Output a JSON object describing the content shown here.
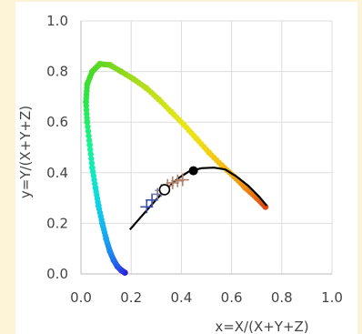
{
  "chart_data": {
    "type": "scatter",
    "title": "",
    "xlabel": "x=X/(X+Y+Z)",
    "ylabel": "y=Y/(X+Y+Z)",
    "xlim": [
      0.0,
      1.0
    ],
    "ylim": [
      0.0,
      1.0
    ],
    "x_ticks": [
      "0.0",
      "0.2",
      "0.4",
      "0.6",
      "0.8",
      "1.0"
    ],
    "y_ticks": [
      "0.0",
      "0.2",
      "0.4",
      "0.6",
      "0.8",
      "1.0"
    ],
    "grid": true,
    "series": [
      {
        "kind": "spectral-locus",
        "points": [
          {
            "x": 0.175,
            "y": 0.005,
            "color": "#2a1fd6"
          },
          {
            "x": 0.16,
            "y": 0.015,
            "color": "#2b34e0"
          },
          {
            "x": 0.145,
            "y": 0.03,
            "color": "#2450e6"
          },
          {
            "x": 0.13,
            "y": 0.055,
            "color": "#1f6ded"
          },
          {
            "x": 0.115,
            "y": 0.09,
            "color": "#1d88f0"
          },
          {
            "x": 0.1,
            "y": 0.14,
            "color": "#1aa2f2"
          },
          {
            "x": 0.085,
            "y": 0.2,
            "color": "#12b9ee"
          },
          {
            "x": 0.07,
            "y": 0.27,
            "color": "#0fd0e6"
          },
          {
            "x": 0.058,
            "y": 0.34,
            "color": "#10e0d4"
          },
          {
            "x": 0.045,
            "y": 0.42,
            "color": "#14ebb8"
          },
          {
            "x": 0.035,
            "y": 0.51,
            "color": "#1bf094"
          },
          {
            "x": 0.025,
            "y": 0.6,
            "color": "#22ee6c"
          },
          {
            "x": 0.02,
            "y": 0.68,
            "color": "#2ae74b"
          },
          {
            "x": 0.025,
            "y": 0.75,
            "color": "#38e035"
          },
          {
            "x": 0.045,
            "y": 0.8,
            "color": "#4ada28"
          },
          {
            "x": 0.075,
            "y": 0.83,
            "color": "#5cd722"
          },
          {
            "x": 0.115,
            "y": 0.826,
            "color": "#72d61f"
          },
          {
            "x": 0.16,
            "y": 0.8,
            "color": "#8ad81e"
          },
          {
            "x": 0.21,
            "y": 0.77,
            "color": "#a2db1d"
          },
          {
            "x": 0.26,
            "y": 0.735,
            "color": "#b6de1c"
          },
          {
            "x": 0.31,
            "y": 0.69,
            "color": "#c9e11b"
          },
          {
            "x": 0.36,
            "y": 0.64,
            "color": "#d9e41a"
          },
          {
            "x": 0.41,
            "y": 0.59,
            "color": "#e6e619"
          },
          {
            "x": 0.46,
            "y": 0.535,
            "color": "#efe018"
          },
          {
            "x": 0.51,
            "y": 0.48,
            "color": "#f3d216"
          },
          {
            "x": 0.56,
            "y": 0.43,
            "color": "#f4c015"
          },
          {
            "x": 0.61,
            "y": 0.385,
            "color": "#f3a914"
          },
          {
            "x": 0.655,
            "y": 0.34,
            "color": "#f08c14"
          },
          {
            "x": 0.7,
            "y": 0.3,
            "color": "#e96a14"
          },
          {
            "x": 0.735,
            "y": 0.265,
            "color": "#e04a15"
          }
        ]
      },
      {
        "kind": "planckian-locus",
        "color": "#000000",
        "points": [
          {
            "x": 0.195,
            "y": 0.175
          },
          {
            "x": 0.23,
            "y": 0.215
          },
          {
            "x": 0.27,
            "y": 0.26
          },
          {
            "x": 0.31,
            "y": 0.305
          },
          {
            "x": 0.35,
            "y": 0.345
          },
          {
            "x": 0.39,
            "y": 0.38
          },
          {
            "x": 0.43,
            "y": 0.405
          },
          {
            "x": 0.48,
            "y": 0.418
          },
          {
            "x": 0.53,
            "y": 0.42
          },
          {
            "x": 0.575,
            "y": 0.413
          },
          {
            "x": 0.62,
            "y": 0.385
          },
          {
            "x": 0.665,
            "y": 0.35
          },
          {
            "x": 0.71,
            "y": 0.305
          },
          {
            "x": 0.74,
            "y": 0.27
          }
        ]
      }
    ],
    "markers": [
      {
        "shape": "plus",
        "x": 0.262,
        "y": 0.265,
        "color": "#3b4fa8"
      },
      {
        "shape": "plus",
        "x": 0.283,
        "y": 0.292,
        "color": "#3b4fa8"
      },
      {
        "shape": "plus",
        "x": 0.305,
        "y": 0.315,
        "color": "#7a7aa0"
      },
      {
        "shape": "plus",
        "x": 0.32,
        "y": 0.33,
        "color": "#8a8aa0"
      },
      {
        "shape": "plus",
        "x": 0.345,
        "y": 0.35,
        "color": "#b0826a"
      },
      {
        "shape": "plus",
        "x": 0.365,
        "y": 0.36,
        "color": "#b0826a"
      },
      {
        "shape": "plus",
        "x": 0.385,
        "y": 0.368,
        "color": "#b0826a"
      },
      {
        "shape": "plus",
        "x": 0.405,
        "y": 0.372,
        "color": "#b0826a"
      },
      {
        "shape": "open-circle",
        "x": 0.333,
        "y": 0.333,
        "color": "#000000"
      },
      {
        "shape": "filled-circle",
        "x": 0.448,
        "y": 0.408,
        "color": "#000000"
      }
    ]
  }
}
